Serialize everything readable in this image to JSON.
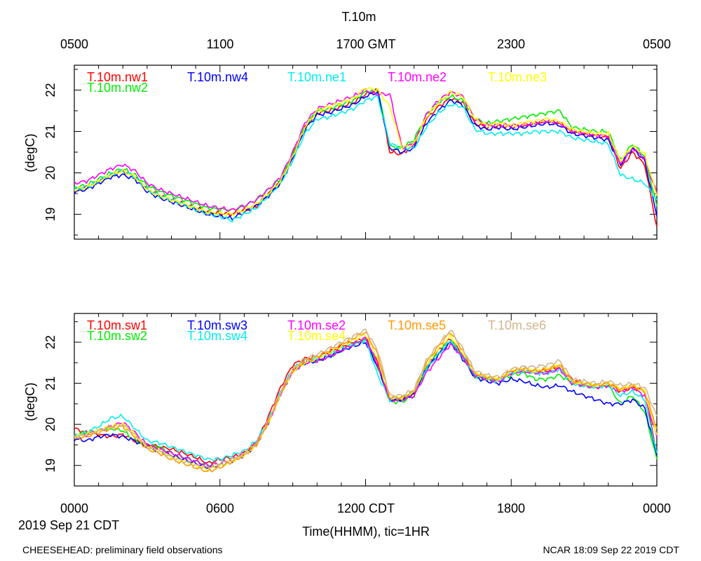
{
  "title": "T.10m",
  "top_axis_ticks": [
    "0500",
    "1100",
    "1700 GMT",
    "2300",
    "0500"
  ],
  "bottom_axis_ticks": [
    "0000",
    "0600",
    "1200 CDT",
    "1800",
    "0000"
  ],
  "date_label": "2019 Sep 21 CDT",
  "xlabel": "Time(HHMM), tic=1HR",
  "footer_left": "CHEESEHEAD: preliminary field observations",
  "footer_right": "NCAR 18:09 Sep 22 2019 CDT",
  "chart_data": [
    {
      "type": "line",
      "panel": "top",
      "ylabel": "(degC)",
      "xlim": [
        0,
        24
      ],
      "ylim": [
        18.4,
        22.6
      ],
      "yticks": [
        19,
        20,
        21,
        22
      ],
      "x_hours": [
        0,
        0.5,
        1,
        1.5,
        2,
        2.5,
        3,
        3.5,
        4,
        4.5,
        5,
        5.5,
        6,
        6.5,
        7,
        7.5,
        8,
        8.5,
        9,
        9.5,
        10,
        10.5,
        11,
        11.5,
        12,
        12.5,
        13,
        13.5,
        14,
        14.5,
        15,
        15.5,
        16,
        16.5,
        17,
        17.5,
        18,
        18.5,
        19,
        19.5,
        20,
        20.5,
        21,
        21.5,
        22,
        22.5,
        23,
        23.5,
        24
      ],
      "series": [
        {
          "name": "T.10m.nw1",
          "color": "#ff0000",
          "legend_row": 0,
          "legend_col": 0,
          "values": [
            19.6,
            19.65,
            19.8,
            19.95,
            20.05,
            19.9,
            19.6,
            19.45,
            19.35,
            19.25,
            19.15,
            19.05,
            19.02,
            19.0,
            19.1,
            19.2,
            19.5,
            19.8,
            20.4,
            21.1,
            21.45,
            21.5,
            21.6,
            21.7,
            21.9,
            22.0,
            20.5,
            20.45,
            20.7,
            21.3,
            21.6,
            21.8,
            21.7,
            21.2,
            21.1,
            21.15,
            21.1,
            21.15,
            21.2,
            21.25,
            21.2,
            21.0,
            20.95,
            20.9,
            20.85,
            20.1,
            20.5,
            20.2,
            18.7
          ]
        },
        {
          "name": "T.10m.nw2",
          "color": "#00ee00",
          "legend_row": 1,
          "legend_col": 0,
          "values": [
            19.65,
            19.7,
            19.85,
            20.0,
            20.1,
            19.95,
            19.7,
            19.55,
            19.45,
            19.35,
            19.25,
            19.15,
            19.12,
            19.1,
            19.2,
            19.35,
            19.6,
            19.85,
            20.45,
            21.1,
            21.5,
            21.55,
            21.65,
            21.75,
            21.95,
            22.0,
            20.65,
            20.6,
            20.8,
            21.4,
            21.7,
            21.85,
            21.75,
            21.3,
            21.2,
            21.25,
            21.3,
            21.35,
            21.4,
            21.45,
            21.5,
            21.1,
            21.05,
            21.0,
            21.0,
            20.3,
            20.7,
            20.4,
            19.2
          ]
        },
        {
          "name": "T.10m.nw4",
          "color": "#0000ff",
          "legend_row": 0,
          "legend_col": 1,
          "values": [
            19.55,
            19.6,
            19.75,
            19.9,
            19.95,
            19.85,
            19.55,
            19.4,
            19.3,
            19.2,
            19.1,
            19.0,
            18.95,
            18.9,
            19.05,
            19.2,
            19.45,
            19.75,
            20.35,
            21.05,
            21.4,
            21.45,
            21.55,
            21.65,
            21.85,
            21.95,
            20.6,
            20.5,
            20.6,
            21.2,
            21.5,
            21.75,
            21.65,
            21.15,
            21.05,
            21.1,
            21.05,
            21.1,
            21.15,
            21.2,
            21.15,
            20.95,
            20.9,
            20.85,
            20.8,
            20.2,
            20.6,
            20.3,
            18.95
          ]
        },
        {
          "name": "T.10m.ne1",
          "color": "#00eeee",
          "legend_row": 0,
          "legend_col": 2,
          "values": [
            19.6,
            19.65,
            19.8,
            19.95,
            20.05,
            19.9,
            19.6,
            19.45,
            19.35,
            19.25,
            19.12,
            19.02,
            18.95,
            18.85,
            19.0,
            19.15,
            19.45,
            19.75,
            20.3,
            20.95,
            21.3,
            21.35,
            21.45,
            21.55,
            21.75,
            21.85,
            20.7,
            20.6,
            20.6,
            21.1,
            21.45,
            21.65,
            21.6,
            21.05,
            20.95,
            20.95,
            20.95,
            20.95,
            21.0,
            21.0,
            21.0,
            20.85,
            20.8,
            20.75,
            20.7,
            19.95,
            19.85,
            19.75,
            19.35
          ]
        },
        {
          "name": "T.10m.ne2",
          "color": "#ff00ff",
          "legend_row": 0,
          "legend_col": 3,
          "values": [
            19.75,
            19.8,
            19.95,
            20.1,
            20.2,
            20.05,
            19.75,
            19.6,
            19.5,
            19.4,
            19.3,
            19.2,
            19.15,
            19.1,
            19.2,
            19.35,
            19.6,
            19.9,
            20.5,
            21.2,
            21.55,
            21.65,
            21.75,
            21.85,
            22.0,
            21.9,
            21.9,
            20.6,
            20.7,
            21.4,
            21.75,
            21.95,
            21.85,
            21.3,
            21.15,
            21.15,
            21.15,
            21.15,
            21.2,
            21.25,
            21.2,
            21.0,
            20.95,
            20.9,
            20.9,
            20.2,
            20.6,
            20.35,
            19.5
          ]
        },
        {
          "name": "T.10m.ne3",
          "color": "#ffff00",
          "legend_row": 0,
          "legend_col": 4,
          "values": [
            19.6,
            19.65,
            19.8,
            19.95,
            20.05,
            19.9,
            19.6,
            19.45,
            19.35,
            19.25,
            19.15,
            19.05,
            19.02,
            19.0,
            19.1,
            19.25,
            19.5,
            19.8,
            20.4,
            21.1,
            21.5,
            21.6,
            21.7,
            21.8,
            22.05,
            22.0,
            21.6,
            20.6,
            20.7,
            21.35,
            21.7,
            21.95,
            21.85,
            21.3,
            21.15,
            21.2,
            21.15,
            21.2,
            21.25,
            21.3,
            21.25,
            21.05,
            21.0,
            20.95,
            20.95,
            20.3,
            20.65,
            20.45,
            19.45
          ]
        }
      ]
    },
    {
      "type": "line",
      "panel": "bottom",
      "ylabel": "(degC)",
      "xlim": [
        0,
        24
      ],
      "ylim": [
        18.5,
        22.7
      ],
      "yticks": [
        19,
        20,
        21,
        22
      ],
      "x_hours": [
        0,
        0.5,
        1,
        1.5,
        2,
        2.5,
        3,
        3.5,
        4,
        4.5,
        5,
        5.5,
        6,
        6.5,
        7,
        7.5,
        8,
        8.5,
        9,
        9.5,
        10,
        10.5,
        11,
        11.5,
        12,
        12.5,
        13,
        13.5,
        14,
        14.5,
        15,
        15.5,
        16,
        16.5,
        17,
        17.5,
        18,
        18.5,
        19,
        19.5,
        20,
        20.5,
        21,
        21.5,
        22,
        22.5,
        23,
        23.5,
        24
      ],
      "series": [
        {
          "name": "T.10m.sw1",
          "color": "#ff0000",
          "legend_row": 0,
          "legend_col": 0,
          "values": [
            19.9,
            19.8,
            19.75,
            19.7,
            19.75,
            19.6,
            19.5,
            19.45,
            19.4,
            19.3,
            19.2,
            19.05,
            19.15,
            19.2,
            19.3,
            19.55,
            20.2,
            20.9,
            21.45,
            21.6,
            21.65,
            21.75,
            21.9,
            22.0,
            22.1,
            21.5,
            20.6,
            20.6,
            20.75,
            21.4,
            21.8,
            22.1,
            21.7,
            21.2,
            21.1,
            21.1,
            21.3,
            21.35,
            21.3,
            21.3,
            21.4,
            21.1,
            21.0,
            20.95,
            21.0,
            20.8,
            20.9,
            20.8,
            19.3
          ]
        },
        {
          "name": "T.10m.sw2",
          "color": "#00ee00",
          "legend_row": 1,
          "legend_col": 0,
          "values": [
            19.75,
            19.8,
            19.85,
            19.9,
            19.85,
            19.6,
            19.5,
            19.45,
            19.3,
            19.2,
            19.1,
            19.0,
            19.05,
            19.15,
            19.3,
            19.55,
            20.1,
            20.75,
            21.3,
            21.5,
            21.55,
            21.65,
            21.8,
            21.95,
            22.05,
            21.4,
            20.55,
            20.55,
            20.7,
            21.35,
            21.75,
            22.05,
            21.65,
            21.15,
            21.1,
            21.05,
            21.2,
            21.25,
            21.1,
            21.1,
            21.2,
            21.0,
            20.95,
            20.9,
            20.95,
            20.5,
            20.7,
            20.3,
            19.15
          ]
        },
        {
          "name": "T.10m.sw3",
          "color": "#0000ff",
          "legend_row": 0,
          "legend_col": 1,
          "values": [
            19.65,
            19.6,
            19.7,
            19.75,
            19.7,
            19.6,
            19.45,
            19.35,
            19.25,
            19.15,
            19.05,
            18.95,
            19.0,
            19.1,
            19.25,
            19.5,
            20.05,
            20.75,
            21.3,
            21.5,
            21.55,
            21.65,
            21.8,
            21.9,
            22.0,
            21.4,
            20.6,
            20.6,
            20.75,
            21.35,
            21.7,
            22.0,
            21.6,
            21.15,
            21.05,
            21.0,
            21.1,
            21.05,
            20.95,
            20.9,
            20.95,
            20.8,
            20.7,
            20.6,
            20.5,
            20.5,
            20.6,
            20.4,
            19.25
          ]
        },
        {
          "name": "T.10m.sw4",
          "color": "#00eeee",
          "legend_row": 1,
          "legend_col": 1,
          "values": [
            19.7,
            19.8,
            19.95,
            20.15,
            20.2,
            19.9,
            19.6,
            19.55,
            19.45,
            19.35,
            19.25,
            19.15,
            19.15,
            19.25,
            19.35,
            19.6,
            20.1,
            20.8,
            21.35,
            21.55,
            21.6,
            21.7,
            21.85,
            21.95,
            22.05,
            21.2,
            20.6,
            20.65,
            20.8,
            21.35,
            21.7,
            22.05,
            21.65,
            21.2,
            21.1,
            21.05,
            21.25,
            21.3,
            21.25,
            21.25,
            21.35,
            21.0,
            20.95,
            20.9,
            20.95,
            20.7,
            20.8,
            20.6,
            19.3
          ]
        },
        {
          "name": "T.10m.se2",
          "color": "#ff00ff",
          "legend_row": 0,
          "legend_col": 2,
          "values": [
            19.7,
            19.75,
            19.85,
            19.95,
            20.05,
            19.8,
            19.5,
            19.4,
            19.3,
            19.2,
            19.1,
            19.0,
            19.05,
            19.15,
            19.3,
            19.55,
            20.05,
            20.75,
            21.3,
            21.5,
            21.55,
            21.65,
            21.8,
            21.95,
            22.1,
            21.45,
            20.6,
            20.6,
            20.7,
            21.25,
            21.6,
            21.95,
            21.65,
            21.2,
            21.1,
            21.05,
            21.25,
            21.3,
            21.25,
            21.25,
            21.35,
            21.0,
            20.95,
            20.9,
            20.95,
            20.8,
            20.9,
            20.7,
            19.7
          ]
        },
        {
          "name": "T.10m.se4",
          "color": "#ffff00",
          "legend_row": 1,
          "legend_col": 2,
          "values": [
            19.7,
            19.75,
            19.85,
            19.95,
            20.0,
            19.75,
            19.45,
            19.35,
            19.2,
            19.1,
            19.0,
            18.9,
            19.0,
            19.1,
            19.25,
            19.5,
            20.05,
            20.75,
            21.3,
            21.5,
            21.6,
            21.75,
            21.9,
            22.05,
            22.2,
            21.6,
            20.65,
            20.65,
            20.8,
            21.45,
            21.85,
            22.15,
            21.75,
            21.25,
            21.15,
            21.1,
            21.3,
            21.35,
            21.3,
            21.35,
            21.45,
            21.05,
            21.0,
            20.95,
            21.0,
            20.85,
            20.95,
            20.8,
            19.75
          ]
        },
        {
          "name": "T.10m.se5",
          "color": "#ff9900",
          "legend_row": 0,
          "legend_col": 3,
          "values": [
            19.65,
            19.7,
            19.8,
            19.9,
            19.95,
            19.7,
            19.4,
            19.3,
            19.15,
            19.05,
            18.95,
            18.85,
            18.95,
            19.1,
            19.25,
            19.5,
            20.05,
            20.75,
            21.3,
            21.55,
            21.65,
            21.8,
            21.95,
            22.1,
            22.25,
            21.7,
            20.65,
            20.65,
            20.8,
            21.5,
            21.9,
            22.25,
            21.8,
            21.25,
            21.15,
            21.1,
            21.3,
            21.35,
            21.3,
            21.35,
            21.45,
            21.05,
            21.0,
            20.95,
            21.0,
            20.85,
            20.95,
            20.8,
            19.9
          ]
        },
        {
          "name": "T.10m.se6",
          "color": "#d2b48c",
          "legend_row": 0,
          "legend_col": 4,
          "values": [
            19.7,
            19.75,
            19.85,
            19.95,
            20.0,
            19.75,
            19.45,
            19.35,
            19.2,
            19.1,
            19.0,
            18.95,
            19.05,
            19.15,
            19.3,
            19.55,
            20.1,
            20.8,
            21.35,
            21.6,
            21.7,
            21.85,
            22.0,
            22.15,
            22.3,
            21.8,
            20.7,
            20.7,
            20.85,
            21.55,
            21.95,
            22.3,
            21.85,
            21.3,
            21.2,
            21.15,
            21.35,
            21.4,
            21.4,
            21.45,
            21.55,
            21.1,
            21.05,
            21.0,
            21.05,
            20.95,
            21.0,
            20.9,
            20.2
          ]
        }
      ]
    }
  ]
}
